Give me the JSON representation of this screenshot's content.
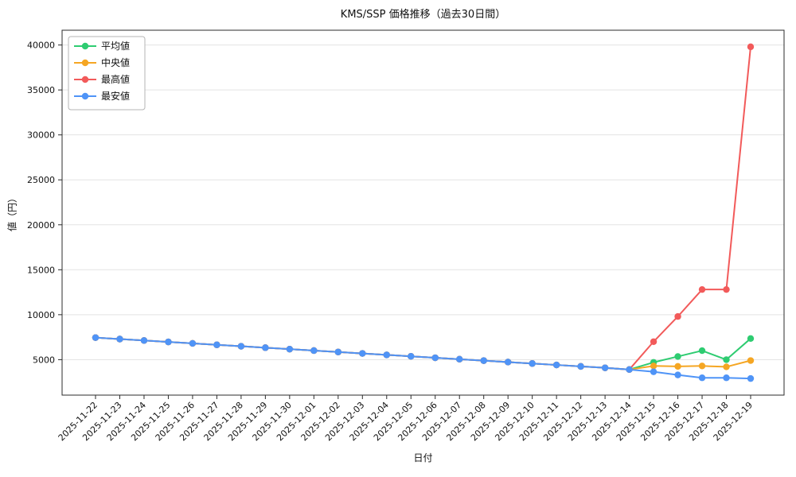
{
  "chart_data": {
    "type": "line",
    "title": "KMS/SSP 価格推移（過去30日間）",
    "xlabel": "日付",
    "ylabel": "値（円）",
    "legend_position": "upper-left",
    "grid": "horizontal",
    "x_tick_rotation": -45,
    "ylim": [
      1055,
      41645
    ],
    "yticks": [
      5000,
      10000,
      15000,
      20000,
      25000,
      30000,
      35000,
      40000
    ],
    "x": [
      "2025-11-22",
      "2025-11-23",
      "2025-11-24",
      "2025-11-25",
      "2025-11-26",
      "2025-11-27",
      "2025-11-28",
      "2025-11-29",
      "2025-11-30",
      "2025-12-01",
      "2025-12-02",
      "2025-12-03",
      "2025-12-04",
      "2025-12-05",
      "2025-12-06",
      "2025-12-07",
      "2025-12-08",
      "2025-12-09",
      "2025-12-10",
      "2025-12-11",
      "2025-12-12",
      "2025-12-13",
      "2025-12-14",
      "2025-12-15",
      "2025-12-16",
      "2025-12-17",
      "2025-12-18",
      "2025-12-19"
    ],
    "series": [
      {
        "key": "average",
        "name": "平均値",
        "color": "#2ecc71",
        "values": [
          7450,
          7290,
          7130,
          6970,
          6810,
          6650,
          6490,
          6330,
          6170,
          6010,
          5850,
          5690,
          5530,
          5370,
          5210,
          5050,
          4890,
          4730,
          4570,
          4410,
          4250,
          4090,
          3900,
          4700,
          5350,
          6000,
          5000,
          7350
        ]
      },
      {
        "key": "median",
        "name": "中央値",
        "color": "#f5a623",
        "values": [
          7450,
          7290,
          7130,
          6970,
          6810,
          6650,
          6490,
          6330,
          6170,
          6010,
          5850,
          5690,
          5530,
          5370,
          5210,
          5050,
          4890,
          4730,
          4570,
          4410,
          4250,
          4090,
          3900,
          4300,
          4250,
          4300,
          4200,
          4900
        ]
      },
      {
        "key": "max",
        "name": "最高値",
        "color": "#f25a5a",
        "values": [
          7450,
          7290,
          7130,
          6970,
          6810,
          6650,
          6490,
          6330,
          6170,
          6010,
          5850,
          5690,
          5530,
          5370,
          5210,
          5050,
          4890,
          4730,
          4570,
          4410,
          4250,
          4090,
          3900,
          7000,
          9800,
          12800,
          12800,
          39800
        ]
      },
      {
        "key": "min",
        "name": "最安値",
        "color": "#4f94f7",
        "values": [
          7450,
          7290,
          7130,
          6970,
          6810,
          6650,
          6490,
          6330,
          6170,
          6010,
          5850,
          5690,
          5530,
          5370,
          5210,
          5050,
          4890,
          4730,
          4570,
          4410,
          4250,
          4090,
          3900,
          3650,
          3300,
          2980,
          2980,
          2900
        ]
      }
    ]
  }
}
